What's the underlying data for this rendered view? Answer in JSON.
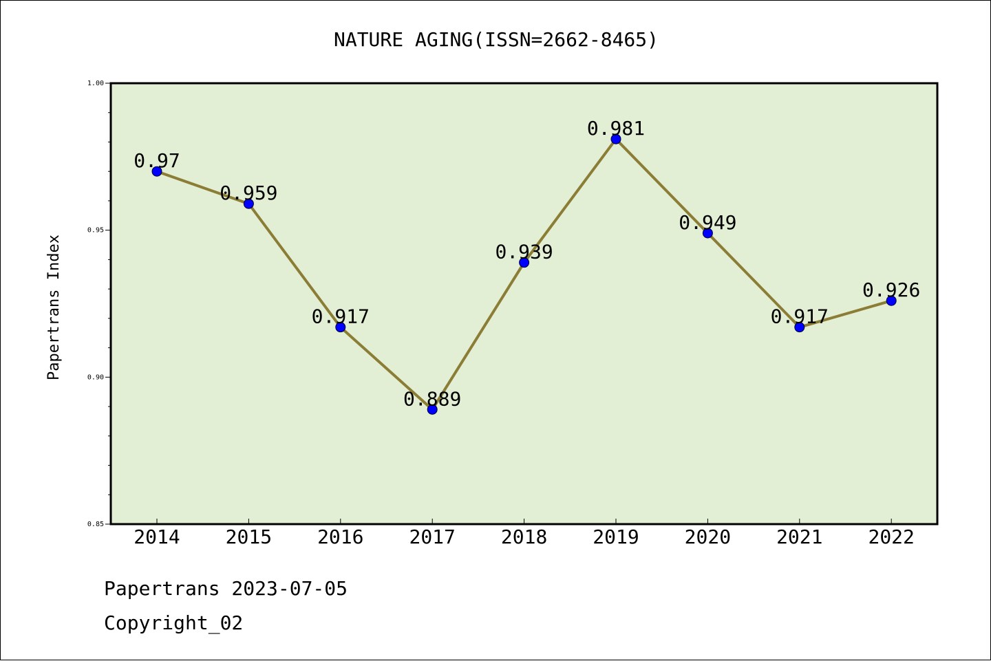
{
  "chart_data": {
    "type": "line",
    "title": "NATURE AGING(ISSN=2662-8465)",
    "xlabel": "",
    "ylabel": "Papertrans Index",
    "categories": [
      "2014",
      "2015",
      "2016",
      "2017",
      "2018",
      "2019",
      "2020",
      "2021",
      "2022"
    ],
    "series": [
      {
        "values": [
          0.97,
          0.959,
          0.917,
          0.889,
          0.939,
          0.981,
          0.949,
          0.917,
          0.926
        ]
      }
    ],
    "data_labels": [
      "0.97",
      "0.959",
      "0.917",
      "0.889",
      "0.939",
      "0.981",
      "0.949",
      "0.917",
      "0.926"
    ],
    "ylim": [
      0.85,
      1.0
    ],
    "yticks": [
      "0.85",
      "0.90",
      "0.95",
      "1.00"
    ],
    "grid": false,
    "legend": "none",
    "colors": {
      "plot_background": "#e2efd4",
      "line": "#8b7d35",
      "marker": "#0000ff"
    }
  },
  "footer": {
    "line1": "Papertrans 2023-07-05",
    "line2": "Copyright_02"
  }
}
